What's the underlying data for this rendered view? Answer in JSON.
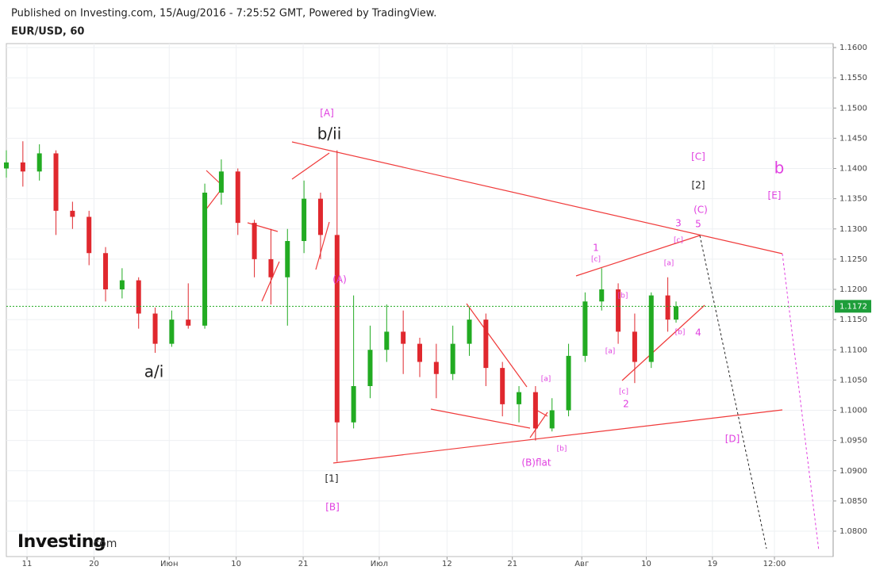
{
  "header": {
    "published": "Published on Investing.com, 15/Aug/2016 - 7:25:52 GMT, Powered by TradingView.",
    "symbol": "EUR/USD, 60"
  },
  "logo": {
    "name": "Investing",
    "suffix": ".com"
  },
  "chart_data": {
    "type": "candlestick",
    "up_color": "#22ab22",
    "down_color": "#e0282e",
    "x": [
      0,
      2,
      4,
      6,
      8,
      10,
      12,
      14,
      16,
      18,
      20,
      22,
      24,
      26,
      28,
      30,
      32,
      34,
      36,
      38,
      40,
      42,
      44,
      46,
      48,
      50,
      52,
      54,
      56,
      58,
      60,
      62,
      64,
      66,
      68,
      70,
      72,
      74,
      76,
      78,
      80,
      81
    ],
    "open": [
      1.14,
      1.141,
      1.1395,
      1.1425,
      1.133,
      1.132,
      1.126,
      1.12,
      1.1215,
      1.116,
      1.111,
      1.115,
      1.114,
      1.136,
      1.1395,
      1.131,
      1.125,
      1.122,
      1.128,
      1.135,
      1.129,
      1.098,
      1.104,
      1.11,
      1.113,
      1.111,
      1.108,
      1.106,
      1.111,
      1.115,
      1.107,
      1.101,
      1.103,
      1.097,
      1.1,
      1.109,
      1.118,
      1.12,
      1.113,
      1.108,
      1.119,
      1.115
    ],
    "high": [
      1.143,
      1.1445,
      1.144,
      1.143,
      1.1345,
      1.133,
      1.127,
      1.1235,
      1.122,
      1.117,
      1.1165,
      1.121,
      1.1375,
      1.1415,
      1.14,
      1.1315,
      1.13,
      1.13,
      1.138,
      1.136,
      1.143,
      1.119,
      1.114,
      1.1175,
      1.1165,
      1.112,
      1.111,
      1.114,
      1.117,
      1.116,
      1.108,
      1.104,
      1.104,
      1.102,
      1.111,
      1.1195,
      1.1235,
      1.121,
      1.116,
      1.1195,
      1.122,
      1.118
    ],
    "low": [
      1.1385,
      1.137,
      1.138,
      1.129,
      1.13,
      1.124,
      1.118,
      1.1185,
      1.1135,
      1.1095,
      1.1105,
      1.1135,
      1.1135,
      1.134,
      1.129,
      1.122,
      1.1175,
      1.114,
      1.126,
      1.125,
      1.0915,
      1.097,
      1.102,
      1.108,
      1.106,
      1.1055,
      1.102,
      1.105,
      1.109,
      1.104,
      1.099,
      1.098,
      1.095,
      1.0965,
      1.099,
      1.108,
      1.1165,
      1.111,
      1.1045,
      1.107,
      1.113,
      1.1145
    ],
    "close": [
      1.141,
      1.1395,
      1.1425,
      1.133,
      1.132,
      1.126,
      1.12,
      1.1215,
      1.116,
      1.111,
      1.115,
      1.114,
      1.136,
      1.1395,
      1.131,
      1.125,
      1.122,
      1.128,
      1.135,
      1.129,
      1.098,
      1.104,
      1.11,
      1.113,
      1.111,
      1.108,
      1.106,
      1.111,
      1.115,
      1.107,
      1.101,
      1.103,
      1.097,
      1.1,
      1.109,
      1.118,
      1.12,
      1.113,
      1.108,
      1.119,
      1.115,
      1.1172
    ],
    "last": 1.1172,
    "xlim": [
      0,
      100
    ],
    "xticks": [
      {
        "value": 2.5,
        "label": "11"
      },
      {
        "value": 10.6,
        "label": "20"
      },
      {
        "value": 19.7,
        "label": "Июн"
      },
      {
        "value": 27.8,
        "label": "10"
      },
      {
        "value": 35.9,
        "label": "21"
      },
      {
        "value": 45.1,
        "label": "Июл"
      },
      {
        "value": 53.3,
        "label": "12"
      },
      {
        "value": 61.2,
        "label": "21"
      },
      {
        "value": 69.6,
        "label": "Авг"
      },
      {
        "value": 77.4,
        "label": "10"
      },
      {
        "value": 85.4,
        "label": "19"
      },
      {
        "value": 92.9,
        "label": "12:00"
      }
    ],
    "ylim": [
      1.08,
      1.16
    ],
    "yticks": [
      {
        "value": 1.08,
        "label": "1.0800"
      },
      {
        "value": 1.085,
        "label": "1.0850"
      },
      {
        "value": 1.09,
        "label": "1.0900"
      },
      {
        "value": 1.095,
        "label": "1.0950"
      },
      {
        "value": 1.1,
        "label": "1.1000"
      },
      {
        "value": 1.105,
        "label": "1.1050"
      },
      {
        "value": 1.11,
        "label": "1.1100"
      },
      {
        "value": 1.115,
        "label": "1.1150"
      },
      {
        "value": 1.12,
        "label": "1.1200"
      },
      {
        "value": 1.125,
        "label": "1.1250"
      },
      {
        "value": 1.13,
        "label": "1.1300"
      },
      {
        "value": 1.135,
        "label": "1.1350"
      },
      {
        "value": 1.14,
        "label": "1.1400"
      },
      {
        "value": 1.145,
        "label": "1.1450"
      },
      {
        "value": 1.15,
        "label": "1.1500"
      },
      {
        "value": 1.155,
        "label": "1.1550"
      },
      {
        "value": 1.16,
        "label": "1.1600"
      }
    ],
    "annotations": [
      "[A]",
      "b/ii",
      "a/i",
      "(A)",
      "[1]",
      "[B]",
      "(B)flat",
      "[b]",
      "[a]",
      "[c]",
      "2",
      "[a]",
      "[b]",
      "1",
      "[c]",
      "[a]",
      "[b]",
      "4",
      "[c]",
      "3",
      "5",
      "(C)",
      "[2]",
      "[C]",
      "[E]",
      "b",
      "[D]"
    ]
  }
}
